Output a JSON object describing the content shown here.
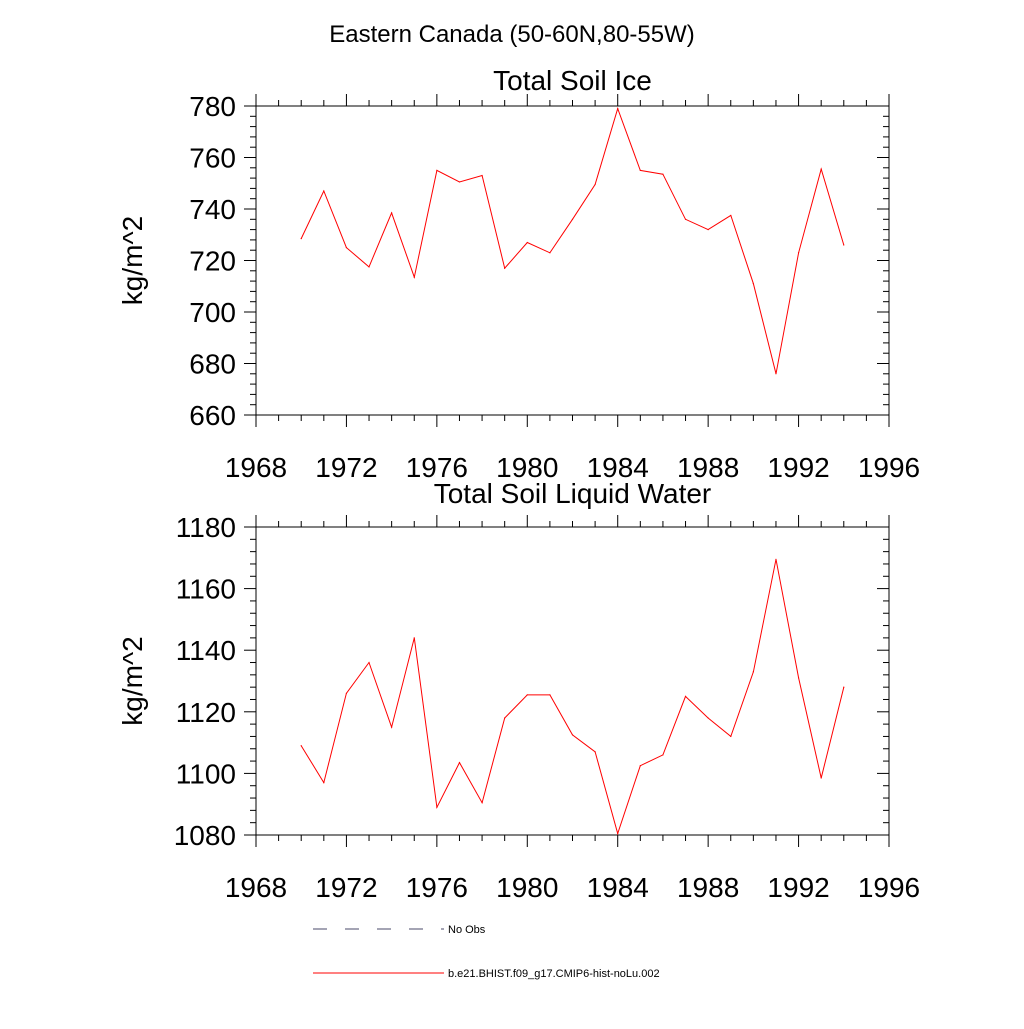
{
  "figure": {
    "title": "Eastern Canada (50-60N,80-55W)"
  },
  "legend": {
    "entries": [
      {
        "label": "No Obs",
        "color": "#4a4a6a",
        "dash": "dashed"
      },
      {
        "label": "b.e21.BHIST.f09_g17.CMIP6-hist-noLu.002",
        "color": "#ff0000",
        "dash": "solid"
      }
    ]
  },
  "chart_data": [
    {
      "type": "line",
      "title": "Total Soil Ice",
      "xlabel": "",
      "ylabel": "kg/m^2",
      "xlim": [
        1968,
        1996
      ],
      "ylim": [
        660,
        780
      ],
      "xticks": [
        1968,
        1972,
        1976,
        1980,
        1984,
        1988,
        1992,
        1996
      ],
      "yticks": [
        660,
        680,
        700,
        720,
        740,
        760,
        780
      ],
      "grid": false,
      "series": [
        {
          "name": "b.e21.BHIST.f09_g17.CMIP6-hist-noLu.002",
          "color": "#ff0000",
          "x": [
            1970,
            1971,
            1972,
            1973,
            1974,
            1975,
            1976,
            1977,
            1978,
            1979,
            1980,
            1981,
            1982,
            1983,
            1984,
            1985,
            1986,
            1987,
            1988,
            1989,
            1990,
            1991,
            1992,
            1993,
            1994
          ],
          "y": [
            728.5,
            747,
            725,
            717.5,
            738.5,
            713.5,
            755,
            750.5,
            753,
            717,
            727,
            723,
            736,
            749.5,
            779,
            755,
            753.5,
            736,
            732,
            737.5,
            711,
            676,
            723,
            755.5,
            726
          ]
        }
      ]
    },
    {
      "type": "line",
      "title": "Total Soil Liquid Water",
      "xlabel": "",
      "ylabel": "kg/m^2",
      "xlim": [
        1968,
        1996
      ],
      "ylim": [
        1080,
        1180
      ],
      "xticks": [
        1968,
        1972,
        1976,
        1980,
        1984,
        1988,
        1992,
        1996
      ],
      "yticks": [
        1080,
        1100,
        1120,
        1140,
        1160,
        1180
      ],
      "grid": false,
      "series": [
        {
          "name": "b.e21.BHIST.f09_g17.CMIP6-hist-noLu.002",
          "color": "#ff0000",
          "x": [
            1970,
            1971,
            1972,
            1973,
            1974,
            1975,
            1976,
            1977,
            1978,
            1979,
            1980,
            1981,
            1982,
            1983,
            1984,
            1985,
            1986,
            1987,
            1988,
            1989,
            1990,
            1991,
            1992,
            1993,
            1994
          ],
          "y": [
            1109,
            1097,
            1126,
            1136,
            1115,
            1144,
            1089,
            1103.5,
            1090.5,
            1118,
            1125.5,
            1125.5,
            1112.5,
            1107,
            1080.5,
            1102.5,
            1106,
            1125,
            1118,
            1112,
            1133,
            1169.5,
            1131,
            1098.5,
            1128
          ]
        }
      ]
    }
  ]
}
